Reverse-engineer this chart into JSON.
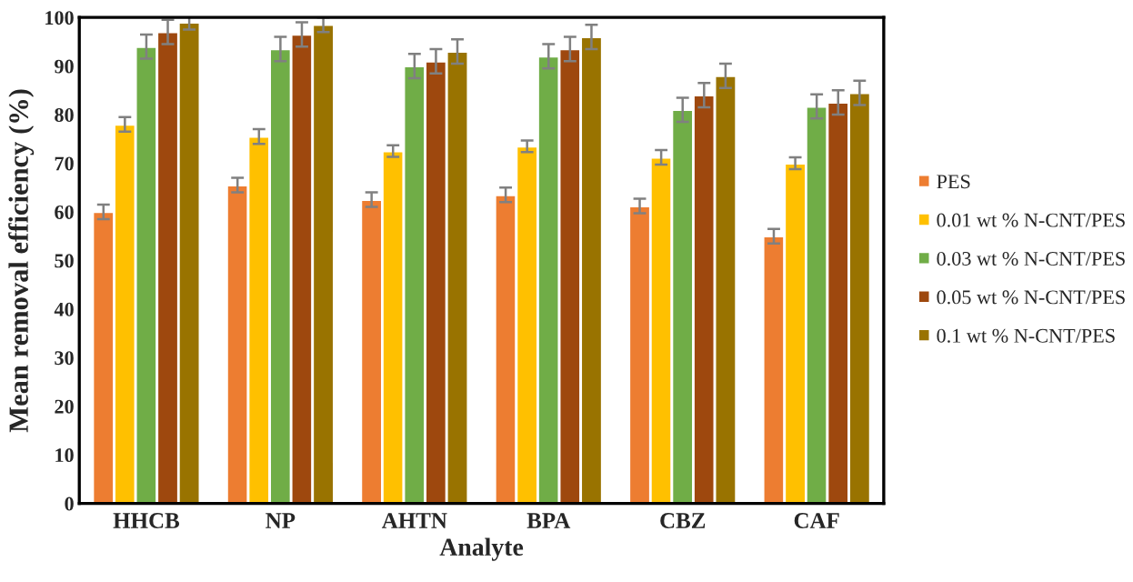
{
  "chart_data": {
    "type": "bar",
    "xlabel": "Analyte",
    "ylabel": "Mean removal efficiency (%)",
    "categories": [
      "HHCB",
      "NP",
      "AHTN",
      "BPA",
      "CBZ",
      "CAF"
    ],
    "series": [
      {
        "name": "PES",
        "color": "#ed7d31",
        "values": [
          60,
          65.5,
          62.5,
          63.5,
          61.2,
          55
        ],
        "errors": [
          1.5,
          1.5,
          1.5,
          1.5,
          1.5,
          1.5
        ]
      },
      {
        "name": "0.01 wt % N-CNT/PES",
        "color": "#ffc000",
        "values": [
          78,
          75.5,
          72.5,
          73.5,
          71.2,
          70
        ],
        "errors": [
          1.5,
          1.5,
          1.2,
          1.2,
          1.5,
          1.2
        ]
      },
      {
        "name": "0.03 wt % N-CNT/PES",
        "color": "#70ad47",
        "values": [
          94,
          93.5,
          90,
          92,
          81,
          81.7
        ],
        "errors": [
          2.5,
          2.5,
          2.5,
          2.5,
          2.5,
          2.5
        ]
      },
      {
        "name": "0.05 wt % N-CNT/PES",
        "color": "#9e480e",
        "values": [
          97,
          96.5,
          91,
          93.5,
          84,
          82.5
        ],
        "errors": [
          2.5,
          2.5,
          2.5,
          2.5,
          2.5,
          2.5
        ]
      },
      {
        "name": "0.1 wt % N-CNT/PES",
        "color": "#997300",
        "values": [
          99,
          98.5,
          93,
          96,
          88,
          84.5
        ],
        "errors": [
          1.5,
          1.5,
          2.5,
          2.5,
          2.5,
          2.5
        ]
      }
    ],
    "ylim": [
      0,
      100
    ],
    "yticks": [
      0,
      10,
      20,
      30,
      40,
      50,
      60,
      70,
      80,
      90,
      100
    ],
    "grid": false,
    "legend": "right"
  }
}
